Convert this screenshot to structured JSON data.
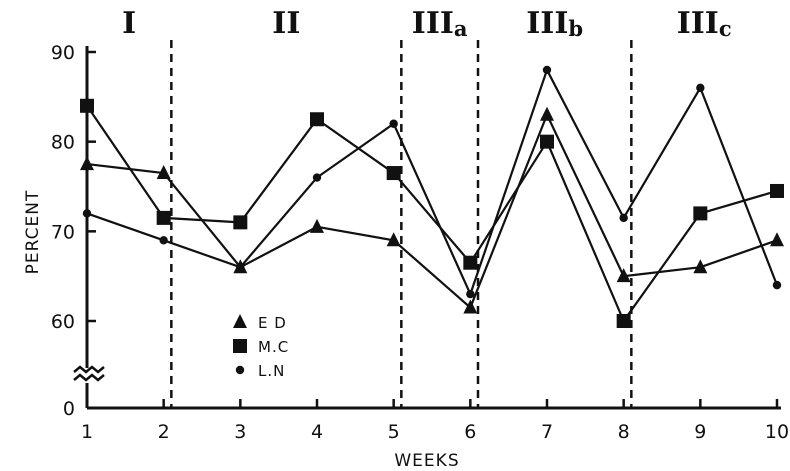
{
  "chart_data": {
    "type": "line",
    "title": "",
    "xlabel": "WEEKS",
    "ylabel": "PERCENT",
    "x": [
      1,
      2,
      3,
      4,
      5,
      6,
      7,
      8,
      9,
      10
    ],
    "xlim": [
      1,
      10
    ],
    "ylim": [
      55,
      90
    ],
    "y_axis_break": true,
    "y_ticks": [
      0,
      60,
      70,
      80,
      90
    ],
    "grid": false,
    "legend_position": "lower-left",
    "phases": [
      {
        "label": "I",
        "sub": "",
        "from": 1,
        "to": 2.1
      },
      {
        "label": "II",
        "sub": "",
        "from": 2.1,
        "to": 5.1
      },
      {
        "label": "III",
        "sub": "a",
        "from": 5.1,
        "to": 6.1
      },
      {
        "label": "III",
        "sub": "b",
        "from": 6.1,
        "to": 8.1
      },
      {
        "label": "III",
        "sub": "c",
        "from": 8.1,
        "to": 10
      }
    ],
    "phase_boundaries": [
      2.1,
      5.1,
      6.1,
      8.1
    ],
    "series": [
      {
        "name": "E D",
        "marker": "triangle",
        "color": "#111111",
        "values": [
          77.5,
          76.5,
          66,
          70.5,
          69,
          61.5,
          83,
          65,
          66,
          69
        ]
      },
      {
        "name": "M.C",
        "marker": "square",
        "color": "#111111",
        "values": [
          84,
          71.5,
          71,
          82.5,
          76.5,
          66.5,
          80,
          60,
          72,
          74.5
        ]
      },
      {
        "name": "L.N",
        "marker": "circle",
        "color": "#111111",
        "values": [
          72,
          69,
          66,
          76,
          82,
          63,
          88,
          71.5,
          86,
          64
        ]
      }
    ]
  }
}
